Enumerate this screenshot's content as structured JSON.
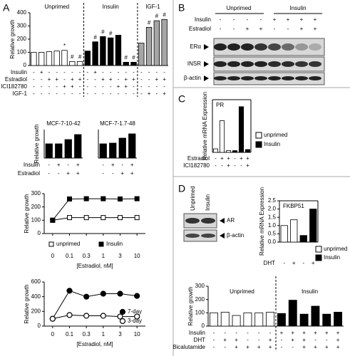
{
  "panels": [
    "A",
    "B",
    "C",
    "D"
  ],
  "blots": {
    "B": {
      "groups": [
        "Unprimed",
        "Insulin"
      ],
      "rows": [
        {
          "name": "Insulin",
          "signs": [
            "-",
            "-",
            "-",
            "-",
            "+",
            "+",
            "+",
            "+"
          ]
        },
        {
          "name": "Estradiol",
          "signs": [
            "-",
            "-",
            "+",
            "+",
            "-",
            "-",
            "+",
            "+"
          ]
        }
      ],
      "bands": [
        "ERα",
        "INSR",
        "β-actin"
      ]
    },
    "D": {
      "lanes": [
        "Unprimed",
        "Insulin"
      ],
      "bands": [
        "AR",
        "β-actin"
      ]
    }
  },
  "chart_data": [
    {
      "type": "bar",
      "ylabel": "Relative growth",
      "ylim": [
        0,
        400
      ],
      "yticks": [
        0,
        100,
        200,
        300,
        400
      ],
      "groups": [
        "Unprimed",
        "Insulin",
        "IGF-1"
      ],
      "series": [
        {
          "values": [
            100,
            100,
            105,
            110,
            115,
            30,
            30,
            110,
            180,
            220,
            210,
            230,
            25,
            25,
            170,
            290,
            340,
            350
          ],
          "colors": [
            "#ffffff",
            "#ffffff",
            "#ffffff",
            "#ffffff",
            "#ffffff",
            "#ffffff",
            "#ffffff",
            "#000000",
            "#000000",
            "#000000",
            "#000000",
            "#000000",
            "#000000",
            "#000000",
            "#a6a6a6",
            "#a6a6a6",
            "#a6a6a6",
            "#a6a6a6"
          ],
          "annotations": [
            null,
            null,
            null,
            null,
            "*",
            "#",
            "#",
            null,
            "#",
            "#",
            "#",
            null,
            "#",
            "#",
            null,
            "#",
            "#",
            "#"
          ]
        }
      ],
      "conditions": [
        {
          "name": "Insulin",
          "signs": [
            "-",
            "+",
            "-",
            "-",
            "-",
            "-",
            "-",
            "-",
            "+",
            "-",
            "-",
            "-",
            "-",
            "-",
            "-",
            "-",
            "-",
            "-"
          ]
        },
        {
          "name": "Estradiol",
          "signs": [
            "-",
            "-",
            "+",
            "+",
            "-",
            "+",
            "+",
            "-",
            "-",
            "+",
            "+",
            "-",
            "+",
            "+",
            "-",
            "-",
            "+",
            "+"
          ]
        },
        {
          "name": "ICI182780",
          "signs": [
            "-",
            "-",
            "-",
            "-",
            "+",
            "+",
            "-",
            "-",
            "-",
            "-",
            "-",
            "+",
            "+",
            "-",
            "-",
            "-",
            "-",
            "-"
          ]
        },
        {
          "name": "IGF-1",
          "signs": [
            "-",
            "-",
            "-",
            "-",
            "-",
            "-",
            "-",
            "-",
            "-",
            "-",
            "-",
            "-",
            "-",
            "-",
            "-",
            "+",
            "-",
            "+"
          ]
        }
      ]
    },
    {
      "type": "bar",
      "title": "MCF-7-10-42",
      "ylabel": "Relative growth",
      "ylim": [
        0,
        200
      ],
      "series": [
        {
          "values": [
            100,
            100,
            130,
            165
          ],
          "colors": [
            "#000000",
            "#000000",
            "#000000",
            "#000000"
          ]
        }
      ],
      "conditions": [
        {
          "name": "Insulin",
          "signs": [
            "-",
            "+",
            "-",
            "+"
          ]
        },
        {
          "name": "Estradiol",
          "signs": [
            "-",
            "-",
            "+",
            "+"
          ]
        }
      ]
    },
    {
      "type": "bar",
      "title": "MCF-7-1.7-48",
      "ylim": [
        0,
        200
      ],
      "series": [
        {
          "values": [
            100,
            105,
            140,
            170
          ],
          "colors": [
            "#000000",
            "#000000",
            "#000000",
            "#000000"
          ]
        }
      ],
      "conditions": [
        {
          "signs": [
            "-",
            "+",
            "-",
            "+"
          ]
        },
        {
          "signs": [
            "-",
            "-",
            "+",
            "+"
          ]
        }
      ]
    },
    {
      "type": "line",
      "ylabel": "Relative growth",
      "xlabel": "[Estradiol, nM]",
      "categories": [
        "0",
        "0.1",
        "0.3",
        "1",
        "3",
        "10"
      ],
      "ylim": [
        0,
        300
      ],
      "yticks": [
        0,
        100,
        200,
        300
      ],
      "legend": "bottom",
      "series": [
        {
          "name": "unprimed",
          "marker": "square",
          "color": "#ffffff",
          "values": [
            100,
            120,
            120,
            120,
            120,
            120
          ]
        },
        {
          "name": "Insulin",
          "marker": "square",
          "color": "#000000",
          "values": [
            100,
            260,
            262,
            262,
            260,
            262
          ]
        }
      ]
    },
    {
      "type": "line",
      "ylabel": "Relative growth",
      "xlabel": "[Estradiol, nM]",
      "categories": [
        "0",
        "0.1",
        "0.3",
        "1",
        "3",
        "10"
      ],
      "ylim": [
        0,
        600
      ],
      "yticks": [
        0,
        200,
        400,
        600
      ],
      "legend": "lower right",
      "series": [
        {
          "name": "7-day",
          "marker": "circle",
          "color": "#000000",
          "values": [
            100,
            480,
            400,
            440,
            440,
            410
          ]
        },
        {
          "name": "3-day",
          "marker": "circle",
          "color": "#ffffff",
          "values": [
            100,
            150,
            140,
            140,
            130,
            130
          ]
        }
      ]
    },
    {
      "type": "bar",
      "title": "PR",
      "ylabel": "Relative mRNA Expression",
      "ylim": [
        0,
        15
      ],
      "series": [
        {
          "values": [
            1,
            9,
            0.5,
            0.5,
            13,
            0.8
          ],
          "colors": [
            "#ffffff",
            "#ffffff",
            "#ffffff",
            "#000000",
            "#000000",
            "#000000"
          ]
        }
      ],
      "legend": [
        {
          "name": "unprimed",
          "color": "#ffffff"
        },
        {
          "name": "Insulin",
          "color": "#000000"
        }
      ],
      "conditions": [
        {
          "name": "Estradiol",
          "signs": [
            "-",
            "+",
            "+",
            "-",
            "+",
            "+"
          ]
        },
        {
          "name": "ICI182780",
          "signs": [
            "-",
            "-",
            "+",
            "-",
            "-",
            "+"
          ]
        }
      ]
    },
    {
      "type": "bar",
      "title": "FKBP51",
      "ylabel": "Relative mRNA Expression",
      "ylim": [
        0,
        2.5
      ],
      "yticks": [
        {
          "value": 0,
          "label": "0.0"
        },
        0.5,
        {
          "value": 1,
          "label": "1.0"
        },
        1.5,
        {
          "value": 2,
          "label": "2.0"
        },
        2.5
      ],
      "series": [
        {
          "values": [
            1.0,
            1.35,
            0.4,
            2.0
          ],
          "colors": [
            "#ffffff",
            "#ffffff",
            "#000000",
            "#000000"
          ]
        }
      ],
      "legend": [
        {
          "name": "unprimed",
          "color": "#ffffff"
        },
        {
          "name": "Insulin",
          "color": "#000000"
        }
      ],
      "conditions": [
        {
          "name": "DHT",
          "signs": [
            "-",
            "+",
            "-",
            "+"
          ]
        }
      ]
    },
    {
      "type": "bar",
      "ylabel": "Relative growth",
      "ylim": [
        0,
        300
      ],
      "yticks": [
        0,
        100,
        200,
        300
      ],
      "groups": [
        "Unprimed",
        "Insulin"
      ],
      "series": [
        {
          "values": [
            100,
            105,
            80,
            100,
            100,
            105,
            95,
            195,
            90,
            150,
            90,
            105
          ],
          "colors": [
            "#ffffff",
            "#ffffff",
            "#ffffff",
            "#ffffff",
            "#ffffff",
            "#ffffff",
            "#000000",
            "#000000",
            "#000000",
            "#000000",
            "#000000",
            "#000000"
          ]
        }
      ],
      "conditions": [
        {
          "name": "Insulin",
          "signs": [
            "-",
            "-",
            "-",
            "-",
            "-",
            "-",
            "+",
            "+",
            "+",
            "+",
            "+",
            "+"
          ]
        },
        {
          "name": "DHT",
          "signs": [
            "-",
            "+",
            "+",
            "-",
            "-",
            "+",
            "-",
            "+",
            "+",
            "-",
            "-",
            "+"
          ]
        },
        {
          "name": "Bicalutamide",
          "signs": [
            "-",
            "-",
            "+",
            "+",
            "+",
            "+",
            "-",
            "-",
            "+",
            "+",
            "+",
            "+"
          ]
        }
      ]
    }
  ]
}
